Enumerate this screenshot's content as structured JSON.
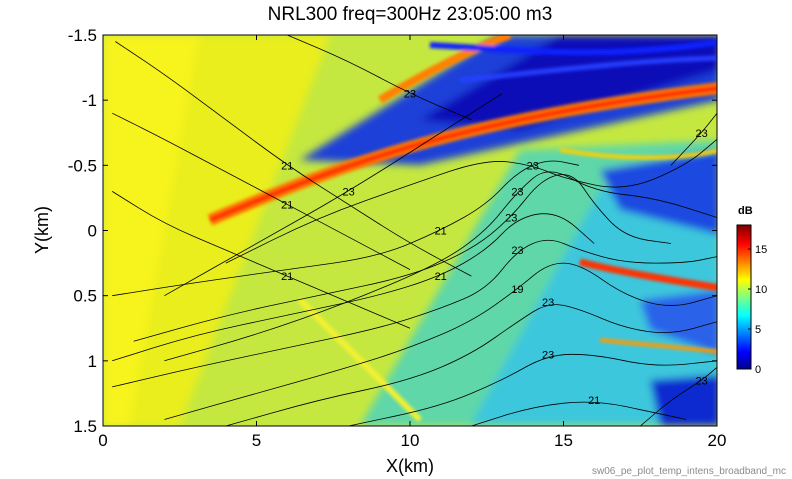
{
  "chart_data": {
    "type": "heatmap",
    "title": "NRL300 freq=300Hz 23:05:00 m3",
    "xlabel": "X(km)",
    "ylabel": "Y(km)",
    "xlim": [
      0,
      20
    ],
    "ylim": [
      -1.5,
      1.5
    ],
    "y_reversed": true,
    "x_ticks": [
      "0",
      "5",
      "10",
      "15",
      "20"
    ],
    "y_ticks": [
      "-1.5",
      "-1",
      "-0.5",
      "0",
      "0.5",
      "1",
      "1.5"
    ],
    "colorbar": {
      "label": "dB",
      "min": 0,
      "max": 18,
      "ticks": [
        "0",
        "5",
        "10",
        "15"
      ],
      "colormap": "jet"
    },
    "contour_labels": [
      "21",
      "19",
      "23",
      "21",
      "23",
      "21",
      "23",
      "23",
      "21",
      "23",
      "19",
      "21",
      "23",
      "23",
      "23",
      "23",
      "21"
    ],
    "contour_lines": [
      {
        "label": "21",
        "points": [
          [
            0.4,
            -1.45
          ],
          [
            2,
            -1.2
          ],
          [
            4,
            -0.85
          ],
          [
            6,
            -0.5
          ],
          [
            8,
            -0.2
          ],
          [
            10,
            0.1
          ],
          [
            12,
            0.35
          ]
        ]
      },
      {
        "label": "23",
        "points": [
          [
            6,
            -1.5
          ],
          [
            8,
            -1.3
          ],
          [
            10,
            -1.05
          ],
          [
            12,
            -0.85
          ]
        ]
      },
      {
        "label": "21",
        "points": [
          [
            0.3,
            -0.9
          ],
          [
            2,
            -0.7
          ],
          [
            4,
            -0.45
          ],
          [
            6,
            -0.2
          ],
          [
            8,
            0.05
          ],
          [
            10,
            0.3
          ]
        ]
      },
      {
        "label": "23",
        "points": [
          [
            2,
            0.5
          ],
          [
            5,
            0.1
          ],
          [
            8,
            -0.3
          ],
          [
            11,
            -0.75
          ],
          [
            13,
            -1.05
          ]
        ]
      },
      {
        "label": "23",
        "points": [
          [
            4,
            0.25
          ],
          [
            7,
            -0.1
          ],
          [
            10,
            -0.35
          ],
          [
            12.5,
            -0.55
          ],
          [
            14,
            -0.5
          ],
          [
            15,
            -0.4
          ],
          [
            17,
            -0.3
          ],
          [
            19,
            -0.5
          ],
          [
            20,
            -0.7
          ]
        ]
      },
      {
        "label": "21",
        "points": [
          [
            0.3,
            -0.3
          ],
          [
            2,
            -0.05
          ],
          [
            4,
            0.15
          ],
          [
            6,
            0.35
          ],
          [
            8,
            0.55
          ],
          [
            10,
            0.75
          ]
        ]
      },
      {
        "label": "23",
        "points": [
          [
            2,
            1.0
          ],
          [
            5,
            0.8
          ],
          [
            8,
            0.55
          ],
          [
            11,
            0.25
          ],
          [
            12.5,
            0.0
          ],
          [
            13.5,
            -0.3
          ],
          [
            14.5,
            -0.5
          ],
          [
            16,
            -0.3
          ],
          [
            18,
            -0.25
          ],
          [
            20,
            -0.1
          ]
        ]
      },
      {
        "label": "21",
        "points": [
          [
            0.3,
            0.5
          ],
          [
            3,
            0.4
          ],
          [
            6,
            0.3
          ],
          [
            9,
            0.2
          ],
          [
            11,
            0.0
          ],
          [
            12.5,
            -0.2
          ],
          [
            13.5,
            -0.45
          ],
          [
            14.5,
            -0.55
          ],
          [
            15.5,
            -0.5
          ]
        ]
      },
      {
        "label": "23",
        "points": [
          [
            1,
            0.85
          ],
          [
            4,
            0.65
          ],
          [
            7,
            0.5
          ],
          [
            10,
            0.35
          ],
          [
            12,
            0.15
          ],
          [
            13.3,
            -0.1
          ],
          [
            14.3,
            -0.4
          ],
          [
            15.3,
            -0.45
          ],
          [
            16,
            -0.2
          ],
          [
            17,
            0.05
          ],
          [
            18.5,
            0.1
          ]
        ]
      },
      {
        "label": "21",
        "points": [
          [
            0.3,
            1.0
          ],
          [
            3,
            0.8
          ],
          [
            6,
            0.65
          ],
          [
            9,
            0.5
          ],
          [
            11,
            0.35
          ],
          [
            12.5,
            0.15
          ],
          [
            13.5,
            -0.1
          ],
          [
            14.8,
            -0.15
          ],
          [
            16,
            0.1
          ]
        ]
      },
      {
        "label": "23",
        "points": [
          [
            0.3,
            1.2
          ],
          [
            3,
            1.05
          ],
          [
            6,
            0.9
          ],
          [
            9,
            0.75
          ],
          [
            11,
            0.6
          ],
          [
            12.5,
            0.45
          ],
          [
            13.5,
            0.15
          ],
          [
            14.5,
            0.05
          ],
          [
            15.5,
            0.15
          ],
          [
            17,
            0.25
          ],
          [
            19,
            0.25
          ],
          [
            20,
            0.2
          ]
        ]
      },
      {
        "label": "19",
        "points": [
          [
            2,
            1.45
          ],
          [
            5,
            1.25
          ],
          [
            8,
            1.05
          ],
          [
            10,
            0.9
          ],
          [
            12,
            0.7
          ],
          [
            13.5,
            0.45
          ],
          [
            14.5,
            0.25
          ],
          [
            15.5,
            0.25
          ],
          [
            17,
            0.5
          ],
          [
            18.5,
            0.6
          ],
          [
            20,
            0.5
          ]
        ]
      },
      {
        "label": "23",
        "points": [
          [
            4,
            1.5
          ],
          [
            7,
            1.3
          ],
          [
            10,
            1.15
          ],
          [
            12,
            0.95
          ],
          [
            13.5,
            0.7
          ],
          [
            14.5,
            0.55
          ],
          [
            15.5,
            0.6
          ],
          [
            17,
            0.75
          ],
          [
            18.5,
            0.8
          ],
          [
            20,
            0.7
          ]
        ]
      },
      {
        "label": "23",
        "points": [
          [
            8,
            1.5
          ],
          [
            11,
            1.35
          ],
          [
            13,
            1.15
          ],
          [
            14.5,
            0.95
          ],
          [
            16,
            0.95
          ],
          [
            18,
            1.05
          ],
          [
            20,
            1.0
          ]
        ]
      },
      {
        "label": "21",
        "points": [
          [
            12,
            1.5
          ],
          [
            14,
            1.35
          ],
          [
            16,
            1.3
          ],
          [
            18,
            1.4
          ],
          [
            19,
            1.45
          ]
        ]
      },
      {
        "label": "23",
        "points": [
          [
            17.5,
            1.5
          ],
          [
            18.5,
            1.3
          ],
          [
            19.5,
            1.15
          ],
          [
            20,
            1.05
          ]
        ]
      },
      {
        "label": "23",
        "points": [
          [
            18.5,
            -0.5
          ],
          [
            19.5,
            -0.75
          ],
          [
            20,
            -0.9
          ]
        ]
      }
    ]
  },
  "footer_text": "sw06_pe_plot_temp_intens_broadband_mc"
}
